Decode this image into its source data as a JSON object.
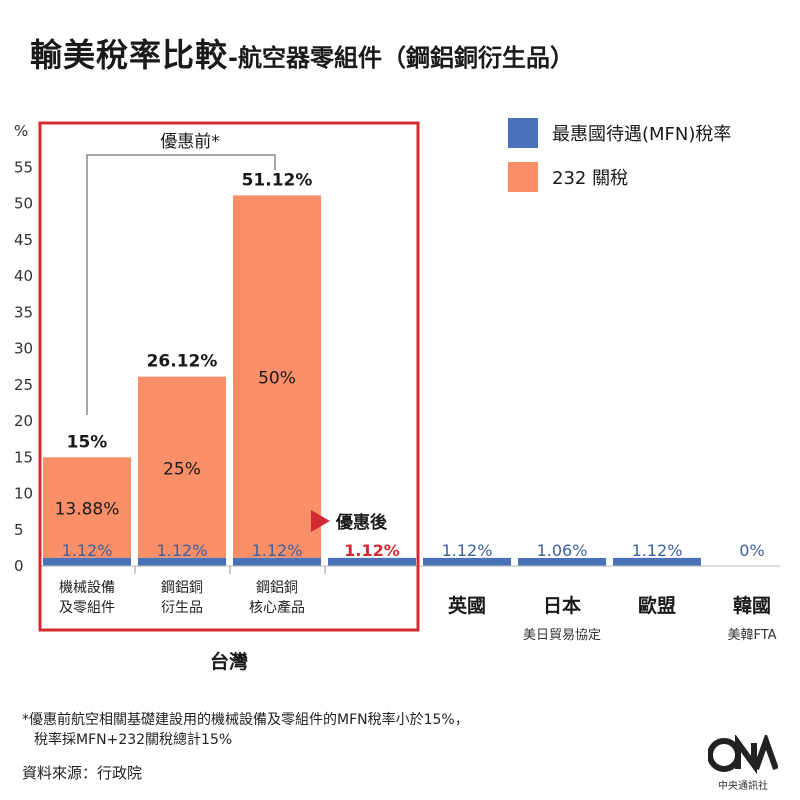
{
  "title": {
    "main": "輸美稅率比較",
    "sub": "-航空器零組件（鋼鋁銅衍生品）"
  },
  "legend": {
    "mfn": "最惠國待遇(MFN)稅率",
    "tariff232": "232 關稅"
  },
  "colors": {
    "mfn": "#4a72b8",
    "tariff232": "#f98f68",
    "highlight": "#d12b31",
    "mfn_text": "#3d5f9f"
  },
  "chart_data": {
    "type": "bar",
    "ylabel": "%",
    "ylim": [
      0,
      55
    ],
    "yticks": [
      0,
      5,
      10,
      15,
      20,
      25,
      30,
      35,
      40,
      45,
      50,
      55
    ],
    "categories": [
      {
        "label": [
          "機械設備",
          "及零組件"
        ],
        "mfn": 1.12,
        "tariff232": 13.88,
        "mfn_label": "1.12%",
        "tariff_label": "13.88%",
        "total_label": "15%"
      },
      {
        "label": [
          "鋼鋁銅",
          "衍生品"
        ],
        "mfn": 1.12,
        "tariff232": 25,
        "mfn_label": "1.12%",
        "tariff_label": "25%",
        "total_label": "26.12%"
      },
      {
        "label": [
          "鋼鋁銅",
          "核心產品"
        ],
        "mfn": 1.12,
        "tariff232": 50,
        "mfn_label": "1.12%",
        "tariff_label": "50%",
        "total_label": "51.12%"
      },
      {
        "label": [],
        "mfn": 1.12,
        "tariff232": 0,
        "mfn_label": "1.12%",
        "highlight": true
      },
      {
        "label": [
          "英國"
        ],
        "mfn": 1.12,
        "tariff232": 0,
        "mfn_label": "1.12%"
      },
      {
        "label": [
          "日本",
          "美日貿易協定"
        ],
        "mfn": 1.06,
        "tariff232": 0,
        "mfn_label": "1.06%"
      },
      {
        "label": [
          "歐盟"
        ],
        "mfn": 1.12,
        "tariff232": 0,
        "mfn_label": "1.12%"
      },
      {
        "label": [
          "韓國",
          "美韓FTA"
        ],
        "mfn": 0,
        "tariff232": 0,
        "mfn_label": "0%"
      }
    ],
    "group_label": "台灣",
    "annotations": {
      "before": "優惠前*",
      "after": "優惠後"
    }
  },
  "footnote": {
    "line1": "*優惠前航空相關基礎建設用的機械設備及零組件的MFN稅率小於15%，",
    "line2": "稅率採MFN+232關稅總計15%"
  },
  "source": "資料來源：行政院",
  "logo": {
    "org": "中央通訊社"
  }
}
